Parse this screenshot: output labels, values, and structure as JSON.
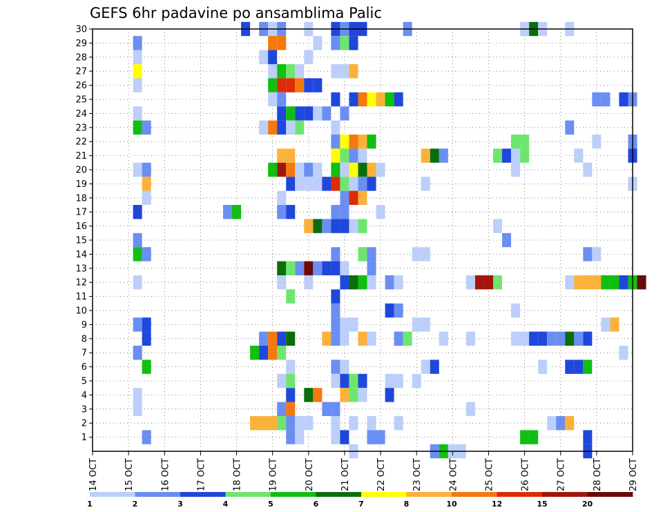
{
  "chart_data": {
    "type": "heatmap",
    "title": "GEFS 6hr padavine po ansamblima Palic",
    "xlabel": "",
    "ylabel": "",
    "x_tick_labels": [
      "14 OCT",
      "15 OCT",
      "16 OCT",
      "17 OCT",
      "18 OCT",
      "19 OCT",
      "20 OCT",
      "21 OCT",
      "22 OCT",
      "23 OCT",
      "24 OCT",
      "25 OCT",
      "26 OCT",
      "27 OCT",
      "28 OCT",
      "29 OCT"
    ],
    "y_tick_labels": [
      "1",
      "2",
      "3",
      "4",
      "5",
      "6",
      "7",
      "8",
      "9",
      "10",
      "11",
      "12",
      "13",
      "14",
      "15",
      "16",
      "17",
      "18",
      "19",
      "20",
      "21",
      "22",
      "23",
      "24",
      "25",
      "26",
      "27",
      "28",
      "29",
      "30"
    ],
    "xlim": [
      "14 OCT",
      "29 OCT"
    ],
    "ylim": [
      0,
      30
    ],
    "grid": true,
    "color_scale": {
      "thresholds": [
        "1",
        "2",
        "3",
        "4",
        "5",
        "6",
        "7",
        "8",
        "10",
        "12",
        "15",
        "20"
      ],
      "colors": [
        "#bccffa",
        "#6a8ef2",
        "#1f47dc",
        "#6ee66e",
        "#10bf10",
        "#0a6e0a",
        "#ffff00",
        "#fbb13a",
        "#f4780c",
        "#dd2b0a",
        "#a3150c",
        "#6c0808"
      ]
    },
    "cells": [
      [
        15.25,
        29,
        1
      ],
      [
        15.25,
        28,
        0
      ],
      [
        15.25,
        27,
        6
      ],
      [
        15.25,
        26,
        0
      ],
      [
        15.25,
        24,
        0
      ],
      [
        15.25,
        23,
        4
      ],
      [
        15.5,
        23,
        1
      ],
      [
        15.25,
        20,
        0
      ],
      [
        15.5,
        20,
        1
      ],
      [
        15.5,
        19,
        7
      ],
      [
        15.5,
        18,
        0
      ],
      [
        15.25,
        17,
        2
      ],
      [
        15.25,
        15,
        1
      ],
      [
        15.25,
        14,
        4
      ],
      [
        15.5,
        14,
        1
      ],
      [
        15.25,
        12,
        0
      ],
      [
        15.25,
        9,
        1
      ],
      [
        15.5,
        9,
        2
      ],
      [
        15.5,
        8,
        2
      ],
      [
        15.25,
        7,
        1
      ],
      [
        15.5,
        6,
        4
      ],
      [
        15.25,
        4,
        0
      ],
      [
        15.25,
        3,
        0
      ],
      [
        15.5,
        1,
        1
      ],
      [
        17.75,
        17,
        1
      ],
      [
        18.0,
        17,
        4
      ],
      [
        18.25,
        30,
        2
      ],
      [
        18.75,
        30,
        1
      ],
      [
        19.0,
        30,
        0
      ],
      [
        19.25,
        30,
        1
      ],
      [
        19.0,
        29,
        8
      ],
      [
        19.25,
        29,
        8
      ],
      [
        18.75,
        28,
        0
      ],
      [
        19.0,
        28,
        2
      ],
      [
        19.0,
        27,
        0
      ],
      [
        19.25,
        27,
        4
      ],
      [
        19.5,
        27,
        3
      ],
      [
        19.75,
        27,
        0
      ],
      [
        19.0,
        26,
        4
      ],
      [
        19.25,
        26,
        9
      ],
      [
        19.5,
        26,
        9
      ],
      [
        19.75,
        26,
        8
      ],
      [
        19.0,
        25,
        0
      ],
      [
        19.25,
        25,
        1
      ],
      [
        19.25,
        24,
        2
      ],
      [
        19.5,
        24,
        4
      ],
      [
        19.75,
        24,
        2
      ],
      [
        18.75,
        23,
        0
      ],
      [
        19.0,
        23,
        8
      ],
      [
        19.25,
        23,
        2
      ],
      [
        19.5,
        23,
        0
      ],
      [
        19.75,
        23,
        3
      ],
      [
        19.25,
        21,
        7
      ],
      [
        19.5,
        21,
        7
      ],
      [
        19.0,
        20,
        4
      ],
      [
        19.25,
        20,
        10
      ],
      [
        19.5,
        20,
        8
      ],
      [
        19.75,
        20,
        0
      ],
      [
        19.5,
        19,
        2
      ],
      [
        19.75,
        19,
        0
      ],
      [
        19.25,
        18,
        0
      ],
      [
        19.25,
        17,
        1
      ],
      [
        19.5,
        17,
        2
      ],
      [
        18.75,
        8,
        1
      ],
      [
        19.0,
        8,
        8
      ],
      [
        19.25,
        8,
        2
      ],
      [
        19.5,
        8,
        5
      ],
      [
        18.5,
        7,
        4
      ],
      [
        18.75,
        7,
        2
      ],
      [
        19.0,
        7,
        8
      ],
      [
        19.25,
        7,
        3
      ],
      [
        19.5,
        6,
        0
      ],
      [
        18.5,
        2,
        7
      ],
      [
        18.75,
        2,
        7
      ],
      [
        19.0,
        2,
        7
      ],
      [
        19.25,
        2,
        3
      ],
      [
        19.5,
        2,
        1
      ],
      [
        19.75,
        2,
        0
      ],
      [
        19.25,
        3,
        1
      ],
      [
        19.5,
        3,
        8
      ],
      [
        19.5,
        4,
        2
      ],
      [
        19.5,
        5,
        3
      ],
      [
        19.25,
        5,
        0
      ],
      [
        19.5,
        1,
        1
      ],
      [
        19.25,
        13,
        5
      ],
      [
        19.5,
        13,
        3
      ],
      [
        19.75,
        13,
        1
      ],
      [
        19.25,
        12,
        0
      ],
      [
        19.5,
        11,
        3
      ],
      [
        20.0,
        30,
        0
      ],
      [
        20.25,
        29,
        0
      ],
      [
        20.0,
        28,
        0
      ],
      [
        20.0,
        26,
        2
      ],
      [
        20.25,
        26,
        2
      ],
      [
        20.0,
        24,
        2
      ],
      [
        20.25,
        24,
        0
      ],
      [
        20.5,
        24,
        1
      ],
      [
        20.0,
        20,
        1
      ],
      [
        20.25,
        20,
        0
      ],
      [
        20.0,
        19,
        0
      ],
      [
        20.25,
        19,
        0
      ],
      [
        20.5,
        19,
        2
      ],
      [
        20.0,
        16,
        7
      ],
      [
        20.25,
        16,
        5
      ],
      [
        20.5,
        16,
        1
      ],
      [
        20.0,
        13,
        11
      ],
      [
        20.25,
        13,
        1
      ],
      [
        20.5,
        13,
        2
      ],
      [
        20.0,
        12,
        0
      ],
      [
        20.0,
        4,
        5
      ],
      [
        20.25,
        4,
        8
      ],
      [
        20.0,
        2,
        0
      ],
      [
        19.75,
        1,
        0
      ],
      [
        20.75,
        30,
        2
      ],
      [
        21.0,
        30,
        1
      ],
      [
        21.25,
        30,
        2
      ],
      [
        21.5,
        30,
        2
      ],
      [
        20.75,
        29,
        1
      ],
      [
        21.0,
        29,
        3
      ],
      [
        21.25,
        29,
        2
      ],
      [
        20.75,
        27,
        0
      ],
      [
        21.0,
        27,
        0
      ],
      [
        21.25,
        27,
        7
      ],
      [
        20.75,
        25,
        2
      ],
      [
        21.0,
        24,
        1
      ],
      [
        21.25,
        25,
        2
      ],
      [
        21.5,
        25,
        8
      ],
      [
        21.75,
        25,
        6
      ],
      [
        22.0,
        25,
        7
      ],
      [
        20.75,
        23,
        0
      ],
      [
        20.75,
        22,
        1
      ],
      [
        21.0,
        22,
        6
      ],
      [
        21.25,
        22,
        8
      ],
      [
        21.5,
        22,
        7
      ],
      [
        21.75,
        22,
        4
      ],
      [
        20.75,
        21,
        6
      ],
      [
        21.0,
        21,
        3
      ],
      [
        21.25,
        21,
        1
      ],
      [
        21.5,
        21,
        0
      ],
      [
        20.75,
        20,
        4
      ],
      [
        21.0,
        20,
        0
      ],
      [
        21.25,
        20,
        6
      ],
      [
        21.5,
        20,
        5
      ],
      [
        21.75,
        20,
        7
      ],
      [
        22.0,
        20,
        0
      ],
      [
        20.75,
        19,
        9
      ],
      [
        21.0,
        19,
        3
      ],
      [
        21.25,
        19,
        0
      ],
      [
        21.5,
        19,
        1
      ],
      [
        21.75,
        19,
        2
      ],
      [
        21.0,
        18,
        1
      ],
      [
        21.25,
        18,
        9
      ],
      [
        21.5,
        18,
        7
      ],
      [
        20.75,
        17,
        1
      ],
      [
        21.0,
        17,
        1
      ],
      [
        21.25,
        16,
        0
      ],
      [
        21.5,
        16,
        3
      ],
      [
        20.75,
        16,
        2
      ],
      [
        21.0,
        16,
        2
      ],
      [
        20.75,
        14,
        1
      ],
      [
        20.75,
        13,
        2
      ],
      [
        21.0,
        13,
        0
      ],
      [
        21.5,
        14,
        3
      ],
      [
        21.75,
        14,
        1
      ],
      [
        21.75,
        13,
        1
      ],
      [
        21.0,
        12,
        2
      ],
      [
        21.25,
        12,
        5
      ],
      [
        21.5,
        12,
        4
      ],
      [
        21.75,
        12,
        0
      ],
      [
        20.75,
        11,
        2
      ],
      [
        20.75,
        10,
        1
      ],
      [
        20.75,
        9,
        1
      ],
      [
        21.0,
        9,
        0
      ],
      [
        21.25,
        9,
        0
      ],
      [
        20.5,
        8,
        7
      ],
      [
        20.75,
        8,
        1
      ],
      [
        21.0,
        8,
        0
      ],
      [
        21.5,
        8,
        7
      ],
      [
        21.75,
        8,
        0
      ],
      [
        20.75,
        6,
        1
      ],
      [
        21.0,
        6,
        0
      ],
      [
        20.75,
        5,
        0
      ],
      [
        21.0,
        5,
        2
      ],
      [
        21.25,
        5,
        3
      ],
      [
        21.5,
        5,
        2
      ],
      [
        21.0,
        4,
        7
      ],
      [
        21.25,
        4,
        3
      ],
      [
        21.5,
        4,
        0
      ],
      [
        20.5,
        3,
        1
      ],
      [
        20.75,
        3,
        1
      ],
      [
        20.75,
        2,
        0
      ],
      [
        21.25,
        2,
        0
      ],
      [
        20.75,
        1,
        0
      ],
      [
        21.0,
        1,
        2
      ],
      [
        21.25,
        0,
        0
      ],
      [
        22.0,
        17,
        0
      ],
      [
        21.75,
        2,
        0
      ],
      [
        21.75,
        1,
        1
      ],
      [
        22.0,
        1,
        1
      ],
      [
        22.25,
        25,
        4
      ],
      [
        22.5,
        25,
        2
      ],
      [
        22.25,
        10,
        2
      ],
      [
        22.5,
        10,
        1
      ],
      [
        22.25,
        5,
        0
      ],
      [
        22.5,
        5,
        0
      ],
      [
        22.25,
        4,
        2
      ],
      [
        22.5,
        2,
        0
      ],
      [
        22.75,
        30,
        1
      ],
      [
        22.25,
        12,
        1
      ],
      [
        22.5,
        12,
        0
      ],
      [
        22.5,
        8,
        1
      ],
      [
        22.75,
        8,
        3
      ],
      [
        23.0,
        9,
        0
      ],
      [
        23.25,
        9,
        0
      ],
      [
        23.0,
        5,
        0
      ],
      [
        23.0,
        14,
        0
      ],
      [
        23.25,
        14,
        0
      ],
      [
        23.25,
        6,
        0
      ],
      [
        23.5,
        6,
        2
      ],
      [
        23.25,
        19,
        0
      ],
      [
        23.25,
        21,
        7
      ],
      [
        23.5,
        21,
        5
      ],
      [
        23.75,
        21,
        1
      ],
      [
        23.5,
        0,
        1
      ],
      [
        23.75,
        0,
        4
      ],
      [
        24.0,
        0,
        0
      ],
      [
        24.25,
        0,
        0
      ],
      [
        23.75,
        8,
        0
      ],
      [
        24.5,
        12,
        0
      ],
      [
        24.5,
        8,
        0
      ],
      [
        24.5,
        3,
        0
      ],
      [
        24.75,
        12,
        10
      ],
      [
        25.0,
        12,
        10
      ],
      [
        25.25,
        12,
        3
      ],
      [
        25.25,
        21,
        3
      ],
      [
        25.5,
        21,
        2
      ],
      [
        25.75,
        22,
        3
      ],
      [
        26.0,
        22,
        3
      ],
      [
        25.75,
        21,
        0
      ],
      [
        26.0,
        21,
        3
      ],
      [
        25.75,
        20,
        0
      ],
      [
        25.25,
        16,
        0
      ],
      [
        25.5,
        15,
        1
      ],
      [
        25.75,
        10,
        0
      ],
      [
        26.0,
        30,
        0
      ],
      [
        26.25,
        30,
        5
      ],
      [
        26.5,
        30,
        0
      ],
      [
        25.75,
        8,
        0
      ],
      [
        26.0,
        8,
        0
      ],
      [
        26.25,
        8,
        2
      ],
      [
        26.5,
        8,
        2
      ],
      [
        26.75,
        8,
        1
      ],
      [
        27.0,
        8,
        1
      ],
      [
        27.25,
        8,
        5
      ],
      [
        27.5,
        8,
        1
      ],
      [
        27.75,
        8,
        2
      ],
      [
        26.5,
        6,
        0
      ],
      [
        27.25,
        6,
        2
      ],
      [
        27.5,
        6,
        2
      ],
      [
        27.75,
        6,
        4
      ],
      [
        26.0,
        1,
        4
      ],
      [
        26.25,
        1,
        4
      ],
      [
        26.75,
        2,
        0
      ],
      [
        27.0,
        2,
        1
      ],
      [
        27.25,
        2,
        7
      ],
      [
        27.75,
        1,
        2
      ],
      [
        27.75,
        0,
        2
      ],
      [
        27.25,
        23,
        1
      ],
      [
        27.5,
        21,
        0
      ],
      [
        27.75,
        20,
        0
      ],
      [
        27.25,
        12,
        0
      ],
      [
        27.5,
        12,
        7
      ],
      [
        27.75,
        12,
        7
      ],
      [
        28.0,
        12,
        7
      ],
      [
        28.25,
        12,
        4
      ],
      [
        28.5,
        12,
        4
      ],
      [
        28.75,
        12,
        2
      ],
      [
        29.0,
        12,
        4
      ],
      [
        29.25,
        12,
        11
      ],
      [
        27.75,
        14,
        1
      ],
      [
        28.0,
        14,
        0
      ],
      [
        28.25,
        9,
        0
      ],
      [
        28.5,
        9,
        7
      ],
      [
        28.0,
        25,
        1
      ],
      [
        28.25,
        25,
        1
      ],
      [
        28.75,
        25,
        2
      ],
      [
        29.0,
        25,
        1
      ],
      [
        28.0,
        22,
        0
      ],
      [
        29.0,
        22,
        1
      ],
      [
        29.0,
        21,
        2
      ],
      [
        29.0,
        19,
        0
      ],
      [
        28.75,
        7,
        0
      ],
      [
        27.25,
        30,
        0
      ]
    ]
  }
}
